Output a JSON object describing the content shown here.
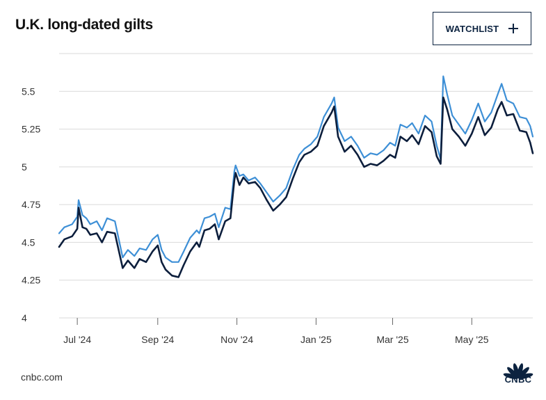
{
  "header": {
    "title": "U.K. long-dated gilts",
    "watchlist_label": "WATCHLIST"
  },
  "footer": {
    "source": "cnbc.com",
    "logo_text": "CNBC"
  },
  "colors": {
    "light_series": "#3d8fd6",
    "dark_series": "#0c1e3c",
    "grid": "#d9d9d9",
    "axis_text": "#333333"
  },
  "icons": {
    "watchlist": "plus-icon",
    "logo": "cnbc-peacock-icon"
  },
  "chart_data": {
    "type": "line",
    "title": "U.K. long-dated gilts",
    "xlabel": "",
    "ylabel": "",
    "ylim": [
      4,
      5.75
    ],
    "yticks": [
      4,
      4.25,
      4.5,
      4.75,
      5,
      5.25,
      5.5
    ],
    "ytick_labels": [
      "4",
      "4.25",
      "4.5",
      "4.75",
      "5",
      "5.25",
      "5.5"
    ],
    "xtick_labels": [
      "Jul '24",
      "Sep '24",
      "Nov '24",
      "Jan '25",
      "Mar '25",
      "May '25"
    ],
    "xtick_dates": [
      "2024-07-01",
      "2024-09-01",
      "2024-11-01",
      "2025-01-01",
      "2025-03-01",
      "2025-05-01"
    ],
    "xlim": [
      "2024-06-17",
      "2025-06-17"
    ],
    "grid": true,
    "legend": "none",
    "series": [
      {
        "color": "#3d8fd6",
        "points": [
          [
            "2024-06-17",
            4.56
          ],
          [
            "2024-06-21",
            4.6
          ],
          [
            "2024-06-27",
            4.62
          ],
          [
            "2024-07-01",
            4.67
          ],
          [
            "2024-07-02",
            4.78
          ],
          [
            "2024-07-05",
            4.68
          ],
          [
            "2024-07-08",
            4.66
          ],
          [
            "2024-07-11",
            4.62
          ],
          [
            "2024-07-16",
            4.64
          ],
          [
            "2024-07-20",
            4.58
          ],
          [
            "2024-07-24",
            4.66
          ],
          [
            "2024-07-30",
            4.64
          ],
          [
            "2024-08-05",
            4.4
          ],
          [
            "2024-08-09",
            4.45
          ],
          [
            "2024-08-14",
            4.41
          ],
          [
            "2024-08-18",
            4.46
          ],
          [
            "2024-08-23",
            4.45
          ],
          [
            "2024-08-28",
            4.52
          ],
          [
            "2024-09-01",
            4.55
          ],
          [
            "2024-09-04",
            4.45
          ],
          [
            "2024-09-07",
            4.4
          ],
          [
            "2024-09-12",
            4.37
          ],
          [
            "2024-09-17",
            4.37
          ],
          [
            "2024-09-21",
            4.44
          ],
          [
            "2024-09-26",
            4.53
          ],
          [
            "2024-10-01",
            4.58
          ],
          [
            "2024-10-03",
            4.56
          ],
          [
            "2024-10-07",
            4.66
          ],
          [
            "2024-10-11",
            4.67
          ],
          [
            "2024-10-15",
            4.69
          ],
          [
            "2024-10-18",
            4.6
          ],
          [
            "2024-10-23",
            4.73
          ],
          [
            "2024-10-27",
            4.72
          ],
          [
            "2024-10-30",
            4.97
          ],
          [
            "2024-10-31",
            5.01
          ],
          [
            "2024-11-03",
            4.94
          ],
          [
            "2024-11-06",
            4.95
          ],
          [
            "2024-11-10",
            4.91
          ],
          [
            "2024-11-15",
            4.93
          ],
          [
            "2024-11-19",
            4.89
          ],
          [
            "2024-11-24",
            4.83
          ],
          [
            "2024-11-29",
            4.77
          ],
          [
            "2024-12-04",
            4.81
          ],
          [
            "2024-12-09",
            4.86
          ],
          [
            "2024-12-14",
            4.98
          ],
          [
            "2024-12-19",
            5.08
          ],
          [
            "2024-12-23",
            5.12
          ],
          [
            "2024-12-28",
            5.15
          ],
          [
            "2025-01-02",
            5.2
          ],
          [
            "2025-01-07",
            5.33
          ],
          [
            "2025-01-13",
            5.42
          ],
          [
            "2025-01-15",
            5.46
          ],
          [
            "2025-01-18",
            5.26
          ],
          [
            "2025-01-23",
            5.17
          ],
          [
            "2025-01-28",
            5.2
          ],
          [
            "2025-02-02",
            5.14
          ],
          [
            "2025-02-07",
            5.06
          ],
          [
            "2025-02-12",
            5.09
          ],
          [
            "2025-02-17",
            5.08
          ],
          [
            "2025-02-22",
            5.11
          ],
          [
            "2025-02-27",
            5.16
          ],
          [
            "2025-03-03",
            5.14
          ],
          [
            "2025-03-07",
            5.28
          ],
          [
            "2025-03-12",
            5.26
          ],
          [
            "2025-03-16",
            5.29
          ],
          [
            "2025-03-21",
            5.22
          ],
          [
            "2025-03-26",
            5.34
          ],
          [
            "2025-03-31",
            5.3
          ],
          [
            "2025-04-04",
            5.14
          ],
          [
            "2025-04-07",
            5.05
          ],
          [
            "2025-04-09",
            5.6
          ],
          [
            "2025-04-12",
            5.48
          ],
          [
            "2025-04-16",
            5.34
          ],
          [
            "2025-04-21",
            5.28
          ],
          [
            "2025-04-26",
            5.22
          ],
          [
            "2025-05-01",
            5.31
          ],
          [
            "2025-05-06",
            5.42
          ],
          [
            "2025-05-11",
            5.3
          ],
          [
            "2025-05-16",
            5.36
          ],
          [
            "2025-05-21",
            5.48
          ],
          [
            "2025-05-24",
            5.55
          ],
          [
            "2025-05-28",
            5.44
          ],
          [
            "2025-06-02",
            5.42
          ],
          [
            "2025-06-07",
            5.33
          ],
          [
            "2025-06-12",
            5.32
          ],
          [
            "2025-06-15",
            5.27
          ],
          [
            "2025-06-17",
            5.2
          ]
        ]
      },
      {
        "color": "#0c1e3c",
        "points": [
          [
            "2024-06-17",
            4.47
          ],
          [
            "2024-06-21",
            4.52
          ],
          [
            "2024-06-27",
            4.54
          ],
          [
            "2024-07-01",
            4.59
          ],
          [
            "2024-07-02",
            4.73
          ],
          [
            "2024-07-05",
            4.6
          ],
          [
            "2024-07-08",
            4.59
          ],
          [
            "2024-07-11",
            4.55
          ],
          [
            "2024-07-16",
            4.56
          ],
          [
            "2024-07-20",
            4.5
          ],
          [
            "2024-07-24",
            4.57
          ],
          [
            "2024-07-30",
            4.56
          ],
          [
            "2024-08-05",
            4.33
          ],
          [
            "2024-08-09",
            4.38
          ],
          [
            "2024-08-14",
            4.33
          ],
          [
            "2024-08-18",
            4.39
          ],
          [
            "2024-08-23",
            4.37
          ],
          [
            "2024-08-28",
            4.44
          ],
          [
            "2024-09-01",
            4.48
          ],
          [
            "2024-09-04",
            4.37
          ],
          [
            "2024-09-07",
            4.32
          ],
          [
            "2024-09-12",
            4.28
          ],
          [
            "2024-09-17",
            4.27
          ],
          [
            "2024-09-21",
            4.35
          ],
          [
            "2024-09-26",
            4.44
          ],
          [
            "2024-10-01",
            4.5
          ],
          [
            "2024-10-03",
            4.47
          ],
          [
            "2024-10-07",
            4.58
          ],
          [
            "2024-10-11",
            4.59
          ],
          [
            "2024-10-15",
            4.62
          ],
          [
            "2024-10-18",
            4.52
          ],
          [
            "2024-10-23",
            4.64
          ],
          [
            "2024-10-27",
            4.66
          ],
          [
            "2024-10-30",
            4.91
          ],
          [
            "2024-10-31",
            4.96
          ],
          [
            "2024-11-03",
            4.88
          ],
          [
            "2024-11-06",
            4.93
          ],
          [
            "2024-11-10",
            4.89
          ],
          [
            "2024-11-15",
            4.9
          ],
          [
            "2024-11-19",
            4.86
          ],
          [
            "2024-11-24",
            4.78
          ],
          [
            "2024-11-29",
            4.71
          ],
          [
            "2024-12-04",
            4.75
          ],
          [
            "2024-12-09",
            4.8
          ],
          [
            "2024-12-14",
            4.92
          ],
          [
            "2024-12-19",
            5.03
          ],
          [
            "2024-12-23",
            5.08
          ],
          [
            "2024-12-28",
            5.1
          ],
          [
            "2025-01-02",
            5.14
          ],
          [
            "2025-01-07",
            5.27
          ],
          [
            "2025-01-13",
            5.36
          ],
          [
            "2025-01-15",
            5.4
          ],
          [
            "2025-01-18",
            5.2
          ],
          [
            "2025-01-23",
            5.1
          ],
          [
            "2025-01-28",
            5.14
          ],
          [
            "2025-02-02",
            5.08
          ],
          [
            "2025-02-07",
            5.0
          ],
          [
            "2025-02-12",
            5.02
          ],
          [
            "2025-02-17",
            5.01
          ],
          [
            "2025-02-22",
            5.04
          ],
          [
            "2025-02-27",
            5.08
          ],
          [
            "2025-03-03",
            5.06
          ],
          [
            "2025-03-07",
            5.2
          ],
          [
            "2025-03-12",
            5.17
          ],
          [
            "2025-03-16",
            5.21
          ],
          [
            "2025-03-21",
            5.15
          ],
          [
            "2025-03-26",
            5.27
          ],
          [
            "2025-03-31",
            5.23
          ],
          [
            "2025-04-04",
            5.07
          ],
          [
            "2025-04-07",
            5.02
          ],
          [
            "2025-04-09",
            5.46
          ],
          [
            "2025-04-12",
            5.38
          ],
          [
            "2025-04-16",
            5.25
          ],
          [
            "2025-04-21",
            5.2
          ],
          [
            "2025-04-26",
            5.14
          ],
          [
            "2025-05-01",
            5.22
          ],
          [
            "2025-05-06",
            5.33
          ],
          [
            "2025-05-11",
            5.21
          ],
          [
            "2025-05-16",
            5.26
          ],
          [
            "2025-05-21",
            5.38
          ],
          [
            "2025-05-24",
            5.43
          ],
          [
            "2025-05-28",
            5.34
          ],
          [
            "2025-06-02",
            5.35
          ],
          [
            "2025-06-07",
            5.24
          ],
          [
            "2025-06-12",
            5.23
          ],
          [
            "2025-06-15",
            5.16
          ],
          [
            "2025-06-17",
            5.09
          ]
        ]
      }
    ]
  }
}
